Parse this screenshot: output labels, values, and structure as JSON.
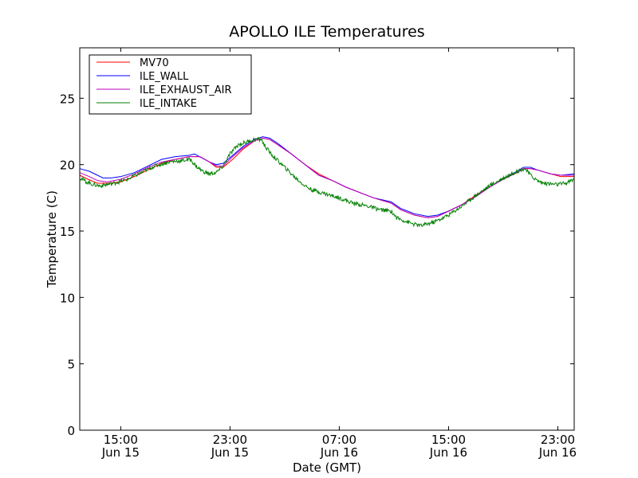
{
  "chart_data": {
    "type": "line",
    "title": "APOLLO ILE Temperatures",
    "xlabel": "Date (GMT)",
    "ylabel": "Temperature (C)",
    "x_unit": "hours since Jun 15 00:00 GMT",
    "xlim": [
      12.0,
      48.2
    ],
    "ylim": [
      0,
      28.8
    ],
    "xticks": [
      {
        "x": 15,
        "line1": "15:00",
        "line2": "Jun 15"
      },
      {
        "x": 23,
        "line1": "23:00",
        "line2": "Jun 15"
      },
      {
        "x": 31,
        "line1": "07:00",
        "line2": "Jun 16"
      },
      {
        "x": 39,
        "line1": "15:00",
        "line2": "Jun 16"
      },
      {
        "x": 47,
        "line1": "23:00",
        "line2": "Jun 16"
      }
    ],
    "yticks": [
      0,
      5,
      10,
      15,
      20,
      25
    ],
    "legend": {
      "position": "top-left"
    },
    "grid": false,
    "series": [
      {
        "name": "MV70",
        "color": "#ff0000",
        "points": [
          [
            12.0,
            19.2
          ],
          [
            12.6,
            18.9
          ],
          [
            13.3,
            18.6
          ],
          [
            14.0,
            18.6
          ],
          [
            15.0,
            18.7
          ],
          [
            16.0,
            19.1
          ],
          [
            17.0,
            19.6
          ],
          [
            18.0,
            20.1
          ],
          [
            19.0,
            20.4
          ],
          [
            20.0,
            20.6
          ],
          [
            20.8,
            20.6
          ],
          [
            21.5,
            20.2
          ],
          [
            22.0,
            19.8
          ],
          [
            22.5,
            19.8
          ],
          [
            23.2,
            20.4
          ],
          [
            24.0,
            21.2
          ],
          [
            24.8,
            21.8
          ],
          [
            25.4,
            22.0
          ],
          [
            25.9,
            21.9
          ],
          [
            26.5,
            21.5
          ],
          [
            27.5,
            20.8
          ],
          [
            28.5,
            20.0
          ],
          [
            29.5,
            19.3
          ],
          [
            30.5,
            18.8
          ],
          [
            31.5,
            18.3
          ],
          [
            32.5,
            17.9
          ],
          [
            33.5,
            17.5
          ],
          [
            34.8,
            17.1
          ],
          [
            35.5,
            16.6
          ],
          [
            36.5,
            16.2
          ],
          [
            37.5,
            16.0
          ],
          [
            38.2,
            16.1
          ],
          [
            39.0,
            16.5
          ],
          [
            40.0,
            17.0
          ],
          [
            41.0,
            17.7
          ],
          [
            42.0,
            18.3
          ],
          [
            43.0,
            18.9
          ],
          [
            44.0,
            19.4
          ],
          [
            44.5,
            19.7
          ],
          [
            45.0,
            19.7
          ],
          [
            45.5,
            19.6
          ],
          [
            46.5,
            19.3
          ],
          [
            47.2,
            19.1
          ],
          [
            48.2,
            19.1
          ]
        ]
      },
      {
        "name": "ILE_WALL",
        "color": "#0000ff",
        "points": [
          [
            12.0,
            19.7
          ],
          [
            12.7,
            19.5
          ],
          [
            13.3,
            19.2
          ],
          [
            13.7,
            19.0
          ],
          [
            14.3,
            19.0
          ],
          [
            15.0,
            19.1
          ],
          [
            16.0,
            19.4
          ],
          [
            17.0,
            19.9
          ],
          [
            18.0,
            20.4
          ],
          [
            19.0,
            20.6
          ],
          [
            20.0,
            20.7
          ],
          [
            20.4,
            20.8
          ],
          [
            21.5,
            20.2
          ],
          [
            22.0,
            20.0
          ],
          [
            22.5,
            20.1
          ],
          [
            23.2,
            20.7
          ],
          [
            24.0,
            21.4
          ],
          [
            24.8,
            21.9
          ],
          [
            25.4,
            22.1
          ],
          [
            25.9,
            22.0
          ],
          [
            26.5,
            21.6
          ],
          [
            27.5,
            20.8
          ],
          [
            28.5,
            20.0
          ],
          [
            29.5,
            19.2
          ],
          [
            30.5,
            18.8
          ],
          [
            31.5,
            18.3
          ],
          [
            32.5,
            17.9
          ],
          [
            33.5,
            17.5
          ],
          [
            34.8,
            17.2
          ],
          [
            35.5,
            16.7
          ],
          [
            36.5,
            16.3
          ],
          [
            37.5,
            16.1
          ],
          [
            38.2,
            16.2
          ],
          [
            39.0,
            16.5
          ],
          [
            40.0,
            17.0
          ],
          [
            41.0,
            17.6
          ],
          [
            42.0,
            18.3
          ],
          [
            43.0,
            18.9
          ],
          [
            44.0,
            19.5
          ],
          [
            44.5,
            19.8
          ],
          [
            45.0,
            19.8
          ],
          [
            45.5,
            19.6
          ],
          [
            46.5,
            19.3
          ],
          [
            47.2,
            19.2
          ],
          [
            48.2,
            19.3
          ]
        ]
      },
      {
        "name": "ILE_EXHAUST_AIR",
        "color": "#bf00bf",
        "points": [
          [
            12.0,
            19.4
          ],
          [
            12.7,
            19.1
          ],
          [
            13.3,
            18.8
          ],
          [
            14.0,
            18.7
          ],
          [
            15.0,
            18.9
          ],
          [
            16.0,
            19.3
          ],
          [
            17.0,
            19.8
          ],
          [
            18.0,
            20.2
          ],
          [
            19.0,
            20.4
          ],
          [
            20.0,
            20.6
          ],
          [
            20.8,
            20.6
          ],
          [
            21.5,
            20.2
          ],
          [
            22.0,
            19.9
          ],
          [
            22.5,
            19.9
          ],
          [
            23.2,
            20.6
          ],
          [
            24.0,
            21.3
          ],
          [
            24.8,
            21.8
          ],
          [
            25.4,
            22.0
          ],
          [
            25.9,
            21.9
          ],
          [
            26.5,
            21.5
          ],
          [
            27.5,
            20.8
          ],
          [
            28.5,
            20.0
          ],
          [
            29.5,
            19.2
          ],
          [
            30.5,
            18.8
          ],
          [
            31.5,
            18.3
          ],
          [
            32.5,
            17.9
          ],
          [
            33.5,
            17.5
          ],
          [
            34.8,
            17.1
          ],
          [
            35.5,
            16.6
          ],
          [
            36.5,
            16.2
          ],
          [
            37.5,
            16.0
          ],
          [
            38.2,
            16.1
          ],
          [
            39.0,
            16.5
          ],
          [
            40.0,
            17.0
          ],
          [
            41.0,
            17.6
          ],
          [
            42.0,
            18.3
          ],
          [
            43.0,
            18.9
          ],
          [
            44.0,
            19.4
          ],
          [
            44.5,
            19.7
          ],
          [
            45.0,
            19.7
          ],
          [
            45.5,
            19.6
          ],
          [
            46.5,
            19.3
          ],
          [
            47.2,
            19.2
          ],
          [
            48.2,
            19.2
          ]
        ]
      },
      {
        "name": "ILE_INTAKE",
        "color": "#008000",
        "noise": 0.15,
        "points": [
          [
            12.0,
            19.0
          ],
          [
            12.5,
            18.7
          ],
          [
            13.0,
            18.5
          ],
          [
            13.5,
            18.4
          ],
          [
            14.5,
            18.6
          ],
          [
            15.5,
            18.9
          ],
          [
            16.5,
            19.4
          ],
          [
            17.5,
            19.9
          ],
          [
            18.5,
            20.2
          ],
          [
            19.5,
            20.3
          ],
          [
            20.1,
            20.4
          ],
          [
            20.5,
            19.9
          ],
          [
            21.0,
            19.5
          ],
          [
            21.5,
            19.3
          ],
          [
            22.0,
            19.4
          ],
          [
            22.5,
            19.9
          ],
          [
            23.0,
            20.8
          ],
          [
            23.6,
            21.5
          ],
          [
            24.2,
            21.7
          ],
          [
            24.8,
            21.9
          ],
          [
            25.3,
            21.9
          ],
          [
            25.5,
            21.5
          ],
          [
            26.0,
            20.8
          ],
          [
            27.0,
            19.8
          ],
          [
            27.8,
            19.0
          ],
          [
            28.5,
            18.4
          ],
          [
            29.0,
            18.1
          ],
          [
            30.0,
            17.8
          ],
          [
            31.0,
            17.5
          ],
          [
            32.0,
            17.1
          ],
          [
            33.0,
            16.9
          ],
          [
            34.0,
            16.6
          ],
          [
            34.8,
            16.5
          ],
          [
            35.2,
            16.0
          ],
          [
            35.7,
            15.8
          ],
          [
            36.5,
            15.5
          ],
          [
            37.0,
            15.4
          ],
          [
            38.0,
            15.7
          ],
          [
            39.0,
            16.2
          ],
          [
            40.0,
            16.9
          ],
          [
            41.0,
            17.7
          ],
          [
            42.0,
            18.4
          ],
          [
            43.0,
            19.0
          ],
          [
            44.0,
            19.5
          ],
          [
            44.6,
            19.7
          ],
          [
            45.0,
            19.2
          ],
          [
            45.5,
            18.8
          ],
          [
            46.0,
            18.6
          ],
          [
            47.0,
            18.5
          ],
          [
            47.6,
            18.6
          ],
          [
            48.2,
            18.9
          ]
        ]
      }
    ]
  }
}
